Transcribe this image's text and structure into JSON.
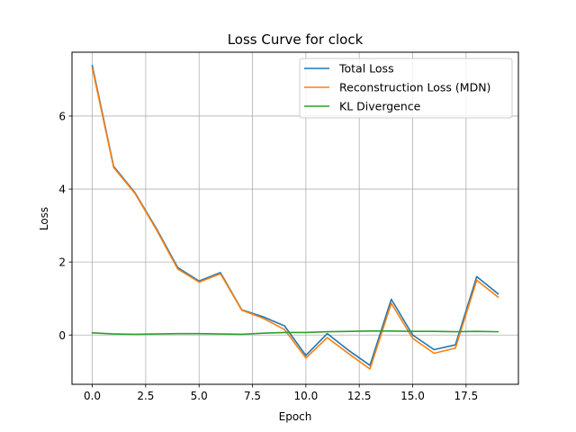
{
  "chart_data": {
    "type": "line",
    "title": "Loss Curve for clock",
    "xlabel": "Epoch",
    "ylabel": "Loss",
    "x": [
      0,
      1,
      2,
      3,
      4,
      5,
      6,
      7,
      8,
      9,
      10,
      11,
      12,
      13,
      14,
      15,
      16,
      17,
      18,
      19
    ],
    "xlim": [
      -0.95,
      19.95
    ],
    "ylim": [
      -1.35,
      7.75
    ],
    "xticks": [
      0.0,
      2.5,
      5.0,
      7.5,
      10.0,
      12.5,
      15.0,
      17.5
    ],
    "xtick_labels": [
      "0.0",
      "2.5",
      "5.0",
      "7.5",
      "10.0",
      "12.5",
      "15.0",
      "17.5"
    ],
    "yticks": [
      0,
      2,
      4,
      6
    ],
    "ytick_labels": [
      "0",
      "2",
      "4",
      "6"
    ],
    "grid": true,
    "legend_position": "top-right",
    "series": [
      {
        "name": "Total Loss",
        "color": "#1f77b4",
        "values": [
          7.38,
          4.62,
          3.9,
          2.92,
          1.85,
          1.48,
          1.71,
          0.69,
          0.5,
          0.25,
          -0.56,
          0.04,
          -0.42,
          -0.83,
          0.98,
          0.0,
          -0.4,
          -0.27,
          1.6,
          1.13
        ]
      },
      {
        "name": "Reconstruction Loss (MDN)",
        "color": "#ff7f0e",
        "values": [
          7.32,
          4.59,
          3.88,
          2.89,
          1.81,
          1.45,
          1.68,
          0.68,
          0.46,
          0.15,
          -0.63,
          -0.07,
          -0.51,
          -0.93,
          0.87,
          -0.09,
          -0.5,
          -0.36,
          1.5,
          1.04
        ]
      },
      {
        "name": "KL Divergence",
        "color": "#2ca02c",
        "values": [
          0.06,
          0.03,
          0.02,
          0.03,
          0.04,
          0.04,
          0.03,
          0.02,
          0.05,
          0.07,
          0.07,
          0.09,
          0.1,
          0.11,
          0.11,
          0.1,
          0.1,
          0.09,
          0.1,
          0.09
        ]
      }
    ]
  }
}
